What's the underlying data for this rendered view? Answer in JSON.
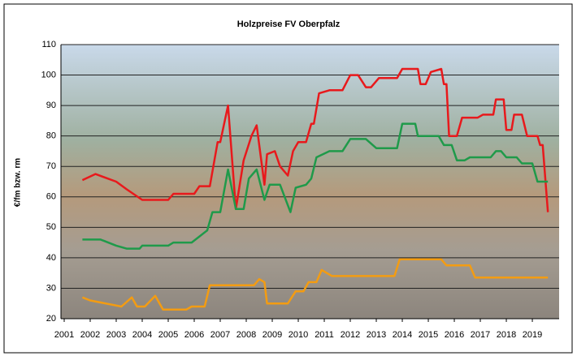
{
  "chart_data": {
    "type": "line",
    "title": "Holzpreise FV Oberpfalz",
    "y_label": "€/fm bzw. rm",
    "xlim": [
      2000.875,
      2020.03
    ],
    "xticks": [
      2001,
      2002,
      2003,
      2004,
      2005,
      2006,
      2007,
      2008,
      2009,
      2010,
      2011,
      2012,
      2013,
      2014,
      2015,
      2016,
      2017,
      2018,
      2019
    ],
    "ylim": [
      20,
      110
    ],
    "yticks": [
      20,
      30,
      40,
      50,
      60,
      70,
      80,
      90,
      100,
      110
    ],
    "grid": true,
    "series": [
      {
        "color": "#e8191c",
        "x": [
          2001.7,
          2002.2,
          2003.0,
          2003.4,
          2004.0,
          2005.0,
          2005.2,
          2006.0,
          2006.2,
          2006.6,
          2006.9,
          2007.0,
          2007.3,
          2007.6,
          2007.9,
          2008.2,
          2008.4,
          2008.7,
          2008.8,
          2009.1,
          2009.3,
          2009.6,
          2009.8,
          2010.0,
          2010.3,
          2010.5,
          2010.6,
          2010.8,
          2011.2,
          2011.7,
          2012.0,
          2012.3,
          2012.6,
          2012.8,
          2013.1,
          2013.8,
          2014.0,
          2014.6,
          2014.7,
          2014.9,
          2015.1,
          2015.5,
          2015.6,
          2015.7,
          2015.8,
          2016.1,
          2016.3,
          2016.9,
          2017.1,
          2017.5,
          2017.6,
          2017.9,
          2018.0,
          2018.2,
          2018.3,
          2018.6,
          2018.8,
          2019.2,
          2019.3,
          2019.4,
          2019.6
        ],
        "values": [
          65.5,
          67.5,
          65,
          62.5,
          59,
          59,
          61,
          61,
          63.5,
          63.5,
          78,
          78,
          90,
          56,
          72,
          80,
          83.5,
          64,
          74,
          75,
          70,
          67,
          75,
          78,
          78,
          84,
          84,
          94,
          95,
          95,
          100,
          100,
          96,
          96,
          99,
          99,
          102,
          102,
          97,
          97,
          101,
          102,
          97,
          97,
          80,
          80,
          86,
          86,
          87,
          87,
          92,
          92,
          82,
          82,
          87,
          87,
          80,
          80,
          77,
          77,
          55
        ]
      },
      {
        "color": "#1f9a4a",
        "x": [
          2001.7,
          2002.4,
          2003.0,
          2003.4,
          2003.9,
          2004.0,
          2005.0,
          2005.2,
          2005.9,
          2006.2,
          2006.5,
          2006.7,
          2007.0,
          2007.3,
          2007.6,
          2007.9,
          2008.1,
          2008.4,
          2008.7,
          2008.9,
          2009.3,
          2009.7,
          2009.9,
          2010.3,
          2010.5,
          2010.7,
          2011.2,
          2011.7,
          2012.0,
          2012.6,
          2013.0,
          2013.8,
          2014.0,
          2014.5,
          2014.6,
          2015.4,
          2015.6,
          2015.9,
          2016.1,
          2016.4,
          2016.6,
          2017.4,
          2017.6,
          2017.8,
          2018.0,
          2018.4,
          2018.6,
          2019.0,
          2019.2,
          2019.6
        ],
        "values": [
          46,
          46,
          44,
          43,
          43,
          44,
          44,
          45,
          45,
          47,
          49,
          55,
          55,
          69,
          56,
          56,
          66,
          69,
          59,
          64,
          64,
          55,
          63,
          64,
          66,
          73,
          75,
          75,
          79,
          79,
          76,
          76,
          84,
          84,
          80,
          80,
          77,
          77,
          72,
          72,
          73,
          73,
          75,
          75,
          73,
          73,
          71,
          71,
          65,
          65
        ]
      },
      {
        "color": "#f39c12",
        "x": [
          2001.7,
          2002.0,
          2003.2,
          2003.6,
          2003.8,
          2004.1,
          2004.5,
          2004.8,
          2005.7,
          2005.9,
          2006.4,
          2006.6,
          2008.3,
          2008.5,
          2008.7,
          2008.8,
          2009.6,
          2009.9,
          2010.2,
          2010.4,
          2010.7,
          2010.9,
          2011.1,
          2011.3,
          2013.7,
          2013.9,
          2015.5,
          2015.7,
          2016.6,
          2016.8,
          2019.6
        ],
        "values": [
          27,
          26,
          24,
          27,
          24,
          24,
          27.5,
          23,
          23,
          24,
          24,
          31,
          31,
          33,
          32,
          25,
          25,
          29,
          29,
          32,
          32,
          36,
          35,
          34,
          34,
          39.5,
          39.5,
          37.5,
          37.5,
          33.5,
          33.5
        ]
      }
    ]
  }
}
